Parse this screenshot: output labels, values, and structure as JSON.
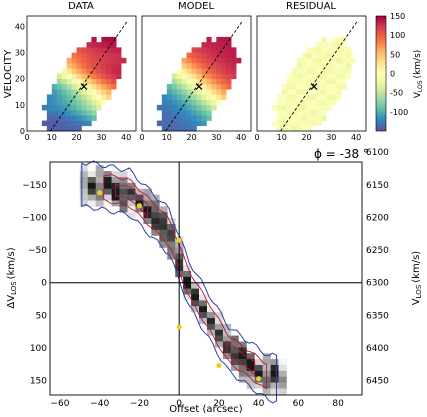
{
  "chart_data": [
    {
      "type": "heatmap",
      "panels": [
        {
          "title": "DATA"
        },
        {
          "title": "MODEL"
        },
        {
          "title": "RESIDUAL"
        }
      ],
      "ylabel": "VELOCITY",
      "x_ticks": [
        "0",
        "10",
        "20",
        "30",
        "40"
      ],
      "y_ticks": [
        "0",
        "10",
        "20",
        "30",
        "40"
      ],
      "xlim": [
        0,
        44
      ],
      "ylim": [
        0,
        44
      ],
      "kinematic_center": [
        23,
        17
      ],
      "major_axis": {
        "x": [
          9.5,
          40.5
        ],
        "y": [
          0,
          42
        ]
      },
      "colorbar": {
        "label_main": "V",
        "label_sub": "LOS",
        "label_unit": "(km/s)",
        "ticks": [
          "150",
          "100",
          "50",
          "0",
          "-50",
          "-100"
        ],
        "range": [
          -150,
          150
        ],
        "colormap": "Spectral_r"
      }
    },
    {
      "type": "heatmap",
      "title": "ϕ = -38 °",
      "xlabel": "Offset (arcsec)",
      "ylabel_main": "ΔV",
      "ylabel_sub": "LOS",
      "ylabel_unit": "(km/s)",
      "ylabel_right_main": "V",
      "ylabel_right_sub": "LOS",
      "ylabel_right_unit": "(km/s)",
      "xlim": [
        -65,
        92
      ],
      "ylim": [
        -185,
        172
      ],
      "x_ticks": [
        "−60",
        "−40",
        "−20",
        "0",
        "20",
        "40",
        "60",
        "80"
      ],
      "y_ticks": [
        "−150",
        "−100",
        "−50",
        "0",
        "50",
        "100",
        "150"
      ],
      "y_right_ticks": [
        "6100",
        "6150",
        "6200",
        "6250",
        "6300",
        "6350",
        "6400",
        "6450"
      ],
      "model_points": [
        {
          "x": -40,
          "y": -138
        },
        {
          "x": -20,
          "y": -118
        },
        {
          "x": 0,
          "y": -65
        },
        {
          "x": 0,
          "y": 68
        },
        {
          "x": 20,
          "y": 127
        },
        {
          "x": 40,
          "y": 147
        }
      ]
    }
  ]
}
